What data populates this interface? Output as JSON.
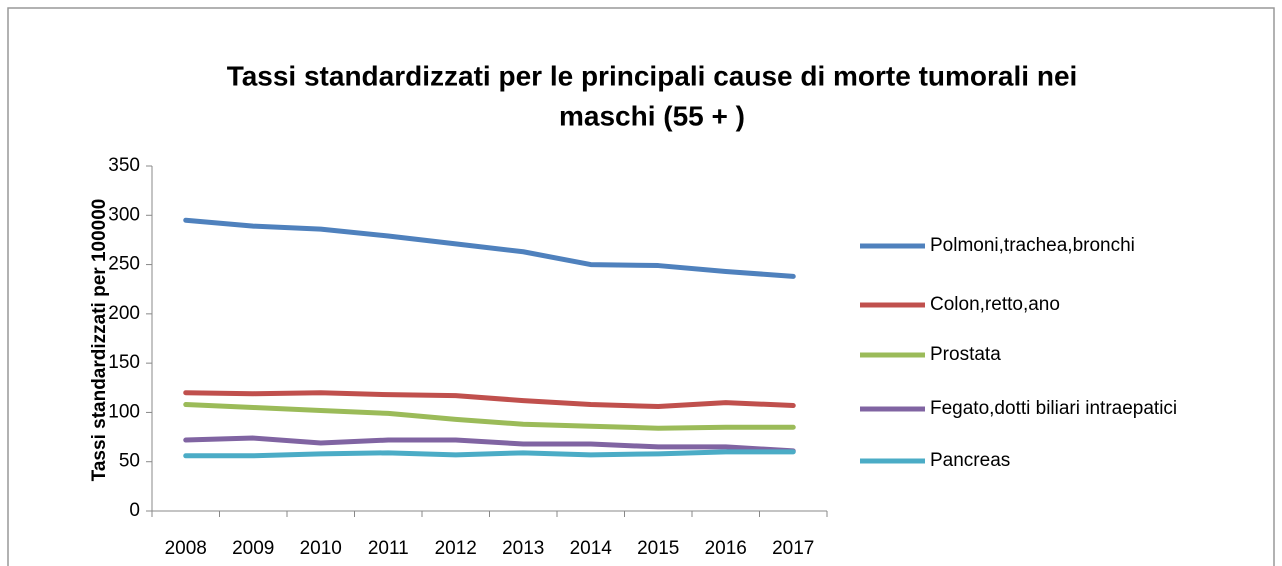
{
  "chart_data": {
    "type": "line",
    "title": [
      "Tassi standardizzati per le principali cause di morte tumorali nei",
      "maschi (55 + )"
    ],
    "y_label": "Tassi standardizzati per 100000",
    "categories": [
      "2008",
      "2009",
      "2010",
      "2011",
      "2012",
      "2013",
      "2014",
      "2015",
      "2016",
      "2017"
    ],
    "series": [
      {
        "name": "Polmoni,trachea,bronchi",
        "color": "#4f81bd",
        "values": [
          295,
          289,
          286,
          279,
          271,
          263,
          250,
          249,
          243,
          238
        ]
      },
      {
        "name": "Colon,retto,ano",
        "color": "#c0504d",
        "values": [
          120,
          119,
          120,
          118,
          117,
          112,
          108,
          106,
          110,
          107
        ]
      },
      {
        "name": "Prostata",
        "color": "#9bbb59",
        "values": [
          108,
          105,
          102,
          99,
          93,
          88,
          86,
          84,
          85,
          85
        ]
      },
      {
        "name": "Fegato,dotti biliari intraepatici",
        "color": "#8064a2",
        "values": [
          72,
          74,
          69,
          72,
          72,
          68,
          68,
          65,
          65,
          61
        ]
      },
      {
        "name": "Pancreas",
        "color": "#4bacc6",
        "values": [
          56,
          56,
          58,
          59,
          57,
          59,
          57,
          58,
          60,
          60
        ]
      }
    ],
    "ylim": [
      0,
      350
    ],
    "yticks": [
      0,
      50,
      100,
      150,
      200,
      250,
      300,
      350
    ],
    "legend": "right"
  }
}
